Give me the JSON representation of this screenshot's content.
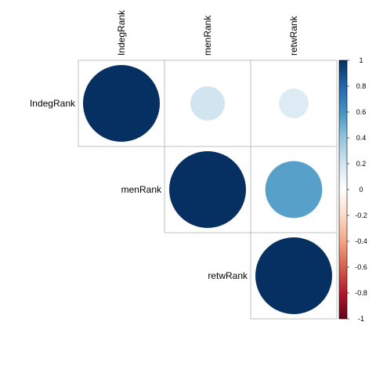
{
  "chart_data": {
    "type": "heatmap",
    "subtype": "correlation-circles-upper",
    "variables": [
      "IndegRank",
      "menRank",
      "retwRank"
    ],
    "matrix": [
      [
        1.0,
        0.2,
        0.15
      ],
      [
        0.2,
        1.0,
        0.55
      ],
      [
        0.15,
        0.55,
        1.0
      ]
    ],
    "colorbar": {
      "range": [
        -1,
        1
      ],
      "ticks": [
        "1",
        "0.8",
        "0.6",
        "0.4",
        "0.2",
        "0",
        "-0.2",
        "-0.4",
        "-0.6",
        "-0.8",
        "-1"
      ],
      "colors": [
        "#67001F",
        "#B2182B",
        "#D6604D",
        "#F4A582",
        "#FDDBC7",
        "#FFFFFF",
        "#D1E5F0",
        "#92C5DE",
        "#4393C3",
        "#2166AC",
        "#053061"
      ]
    },
    "grid": true,
    "legend_position": "right"
  }
}
